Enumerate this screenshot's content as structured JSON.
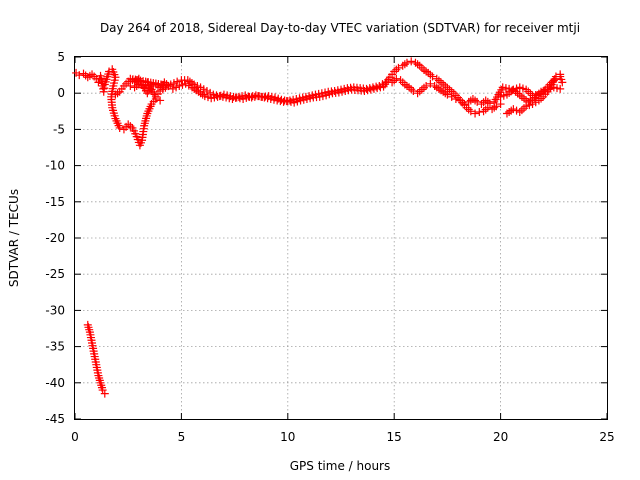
{
  "chart_data": {
    "type": "scatter",
    "title": "Day 264 of 2018, Sidereal Day-to-day VTEC variation (SDTVAR) for receiver mtji",
    "xlabel": "GPS time / hours",
    "ylabel": "SDTVAR / TECUs",
    "xlim": [
      0,
      25
    ],
    "ylim": [
      -45,
      5
    ],
    "xticks": [
      0,
      5,
      10,
      15,
      20,
      25
    ],
    "yticks": [
      5,
      0,
      -5,
      -10,
      -15,
      -20,
      -25,
      -30,
      -35,
      -40,
      -45
    ],
    "grid": true,
    "marker": "+",
    "color": "#ff0000",
    "series": [
      {
        "name": "SDTVAR",
        "points": [
          [
            0.05,
            2.8
          ],
          [
            0.2,
            2.5
          ],
          [
            0.4,
            2.7
          ],
          [
            0.6,
            2.2
          ],
          [
            0.8,
            2.6
          ],
          [
            1.0,
            2.0
          ],
          [
            1.1,
            1.5
          ],
          [
            1.2,
            2.4
          ],
          [
            1.3,
            1.0
          ],
          [
            1.35,
            0.2
          ],
          [
            1.4,
            1.2
          ],
          [
            1.6,
            3.0
          ],
          [
            1.75,
            3.3
          ],
          [
            1.9,
            2.2
          ],
          [
            1.8,
            1.0
          ],
          [
            1.7,
            -0.5
          ],
          [
            1.75,
            -2.0
          ],
          [
            1.9,
            -3.5
          ],
          [
            2.1,
            -4.8
          ],
          [
            2.3,
            -5.0
          ],
          [
            2.5,
            -4.3
          ],
          [
            2.7,
            -4.8
          ],
          [
            2.9,
            -6.0
          ],
          [
            3.05,
            -7.2
          ],
          [
            3.15,
            -6.5
          ],
          [
            3.25,
            -4.5
          ],
          [
            3.4,
            -2.8
          ],
          [
            3.6,
            -1.5
          ],
          [
            3.8,
            -0.8
          ],
          [
            4.0,
            -1.0
          ],
          [
            1.9,
            -0.2
          ],
          [
            2.1,
            0.2
          ],
          [
            2.3,
            1.0
          ],
          [
            2.5,
            1.6
          ],
          [
            2.6,
            1.0
          ],
          [
            2.8,
            0.8
          ],
          [
            3.0,
            1.2
          ],
          [
            3.2,
            1.0
          ],
          [
            3.4,
            0.0
          ],
          [
            3.6,
            1.0
          ],
          [
            3.8,
            1.2
          ],
          [
            4.0,
            0.8
          ],
          [
            4.2,
            1.5
          ],
          [
            4.4,
            1.0
          ],
          [
            2.6,
            2.0
          ],
          [
            2.8,
            1.6
          ],
          [
            3.0,
            2.0
          ],
          [
            3.2,
            0.8
          ],
          [
            3.4,
            1.5
          ],
          [
            3.6,
            0.5
          ],
          [
            3.8,
            -0.5
          ],
          [
            4.0,
            0.3
          ],
          [
            4.5,
            1.2
          ],
          [
            4.8,
            1.6
          ],
          [
            5.0,
            1.8
          ],
          [
            5.3,
            1.8
          ],
          [
            5.6,
            1.2
          ],
          [
            5.9,
            0.8
          ],
          [
            6.2,
            0.3
          ],
          [
            6.5,
            -0.2
          ],
          [
            6.8,
            -0.4
          ],
          [
            7.1,
            -0.6
          ],
          [
            7.4,
            -0.8
          ],
          [
            7.7,
            -0.5
          ],
          [
            8.0,
            -0.3
          ],
          [
            8.3,
            -0.6
          ],
          [
            8.6,
            -0.4
          ],
          [
            8.9,
            -0.6
          ],
          [
            9.2,
            -0.8
          ],
          [
            9.5,
            -1.0
          ],
          [
            9.8,
            -1.2
          ],
          [
            10.1,
            -1.0
          ],
          [
            10.4,
            -0.8
          ],
          [
            10.7,
            -0.6
          ],
          [
            11.0,
            -0.4
          ],
          [
            11.3,
            -0.2
          ],
          [
            11.6,
            0.0
          ],
          [
            11.9,
            0.2
          ],
          [
            12.2,
            0.3
          ],
          [
            12.5,
            0.5
          ],
          [
            12.8,
            0.7
          ],
          [
            13.1,
            0.8
          ],
          [
            13.4,
            0.7
          ],
          [
            13.7,
            0.6
          ],
          [
            14.0,
            0.8
          ],
          [
            14.3,
            1.0
          ],
          [
            14.6,
            1.5
          ],
          [
            4.6,
            0.6
          ],
          [
            4.9,
            1.0
          ],
          [
            5.2,
            1.3
          ],
          [
            5.5,
            0.8
          ],
          [
            5.8,
            0.2
          ],
          [
            6.1,
            -0.4
          ],
          [
            6.4,
            -0.7
          ],
          [
            6.7,
            -0.5
          ],
          [
            7.0,
            -0.2
          ],
          [
            7.3,
            -0.4
          ],
          [
            7.6,
            -0.6
          ],
          [
            7.9,
            -0.8
          ],
          [
            8.2,
            -0.5
          ],
          [
            8.5,
            -0.3
          ],
          [
            8.8,
            -0.5
          ],
          [
            9.1,
            -0.4
          ],
          [
            9.4,
            -0.6
          ],
          [
            9.7,
            -0.9
          ],
          [
            10.0,
            -1.1
          ],
          [
            10.3,
            -1.3
          ],
          [
            10.6,
            -1.0
          ],
          [
            10.9,
            -0.8
          ],
          [
            11.2,
            -0.6
          ],
          [
            11.5,
            -0.5
          ],
          [
            11.8,
            -0.3
          ],
          [
            12.1,
            0.0
          ],
          [
            12.4,
            0.1
          ],
          [
            12.7,
            0.3
          ],
          [
            13.0,
            0.5
          ],
          [
            13.3,
            0.4
          ],
          [
            13.6,
            0.3
          ],
          [
            13.9,
            0.5
          ],
          [
            14.2,
            0.7
          ],
          [
            14.5,
            0.9
          ],
          [
            14.8,
            2.2
          ],
          [
            15.0,
            3.0
          ],
          [
            15.2,
            3.5
          ],
          [
            15.4,
            3.8
          ],
          [
            15.6,
            4.2
          ],
          [
            15.8,
            4.4
          ],
          [
            16.0,
            4.2
          ],
          [
            16.2,
            3.8
          ],
          [
            16.4,
            3.2
          ],
          [
            16.6,
            2.8
          ],
          [
            16.8,
            2.3
          ],
          [
            17.0,
            2.0
          ],
          [
            17.2,
            1.5
          ],
          [
            17.4,
            1.0
          ],
          [
            17.6,
            0.5
          ],
          [
            17.8,
            0.0
          ],
          [
            18.0,
            -0.6
          ],
          [
            18.2,
            -1.3
          ],
          [
            18.4,
            -2.0
          ],
          [
            18.6,
            -2.5
          ],
          [
            18.8,
            -2.8
          ],
          [
            19.0,
            -2.6
          ],
          [
            19.2,
            -2.5
          ],
          [
            19.4,
            -2.0
          ],
          [
            19.6,
            -2.2
          ],
          [
            19.8,
            -1.8
          ],
          [
            20.0,
            -1.5
          ],
          [
            14.9,
            1.5
          ],
          [
            15.1,
            2.0
          ],
          [
            15.3,
            1.8
          ],
          [
            15.5,
            1.2
          ],
          [
            15.7,
            0.8
          ],
          [
            15.9,
            0.3
          ],
          [
            16.1,
            0.0
          ],
          [
            16.3,
            0.5
          ],
          [
            16.5,
            1.0
          ],
          [
            16.7,
            1.3
          ],
          [
            16.9,
            1.0
          ],
          [
            17.1,
            0.6
          ],
          [
            17.3,
            0.2
          ],
          [
            17.5,
            -0.2
          ],
          [
            17.7,
            -0.5
          ],
          [
            17.9,
            -0.8
          ],
          [
            18.1,
            -1.0
          ],
          [
            18.3,
            -1.5
          ],
          [
            18.5,
            -1.2
          ],
          [
            18.7,
            -0.8
          ],
          [
            18.9,
            -1.2
          ],
          [
            19.1,
            -1.5
          ],
          [
            19.3,
            -1.0
          ],
          [
            19.5,
            -1.4
          ],
          [
            19.7,
            -1.2
          ],
          [
            20.1,
            0.8
          ],
          [
            20.4,
            0.6
          ],
          [
            20.7,
            0.2
          ],
          [
            21.0,
            -0.5
          ],
          [
            21.3,
            -1.2
          ],
          [
            21.6,
            -0.6
          ],
          [
            21.9,
            0.2
          ],
          [
            22.2,
            0.5
          ],
          [
            22.5,
            0.8
          ],
          [
            22.8,
            0.6
          ],
          [
            20.0,
            -0.5
          ],
          [
            20.3,
            -0.2
          ],
          [
            20.6,
            0.5
          ],
          [
            20.9,
            0.8
          ],
          [
            21.2,
            0.5
          ],
          [
            21.5,
            -0.3
          ],
          [
            21.8,
            -0.2
          ],
          [
            22.1,
            0.5
          ],
          [
            22.4,
            1.5
          ],
          [
            22.6,
            2.0
          ],
          [
            22.8,
            2.3
          ],
          [
            22.9,
            1.5
          ],
          [
            20.3,
            -2.8
          ],
          [
            20.6,
            -2.2
          ],
          [
            20.9,
            -2.6
          ],
          [
            21.2,
            -1.8
          ],
          [
            21.5,
            -1.5
          ],
          [
            21.8,
            -1.0
          ],
          [
            22.0,
            -0.5
          ],
          [
            22.2,
            0.2
          ],
          [
            22.4,
            1.2
          ],
          [
            22.6,
            2.3
          ],
          [
            22.8,
            2.6
          ],
          [
            0.6,
            -32.0
          ],
          [
            0.7,
            -33.0
          ],
          [
            0.8,
            -34.5
          ],
          [
            0.9,
            -36.0
          ],
          [
            1.0,
            -37.5
          ],
          [
            1.1,
            -39.0
          ],
          [
            1.2,
            -40.0
          ],
          [
            1.3,
            -41.0
          ],
          [
            1.4,
            -41.5
          ]
        ]
      }
    ]
  }
}
